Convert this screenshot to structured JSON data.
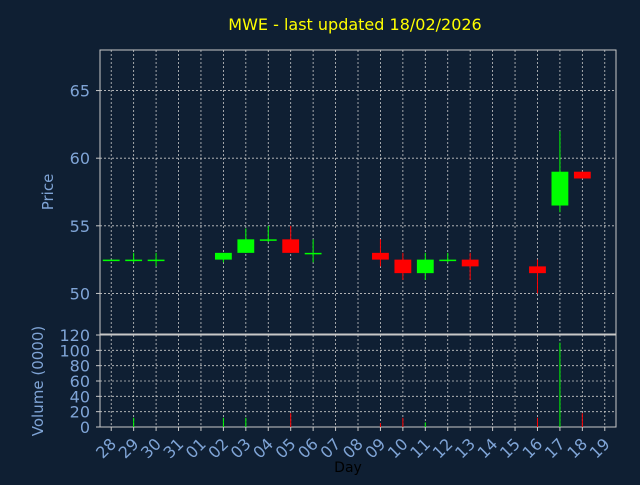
{
  "chart_data": [
    {
      "type": "candlestick",
      "title": "MWE - last updated 18/02/2026",
      "ylabel": "Price",
      "ylim": [
        47,
        68
      ],
      "yticks": [
        50,
        55,
        60,
        65
      ],
      "grid": true,
      "categories": [
        "28",
        "29",
        "30",
        "31",
        "01",
        "02",
        "03",
        "04",
        "05",
        "06",
        "07",
        "08",
        "09",
        "10",
        "11",
        "12",
        "13",
        "14",
        "15",
        "16",
        "17",
        "18",
        "19"
      ],
      "candles": [
        {
          "day": "28",
          "open": 52.5,
          "close": 52.5,
          "high": 52.5,
          "low": 52.5
        },
        {
          "day": "29",
          "open": 52.5,
          "close": 52.5,
          "high": 53.0,
          "low": 52.3
        },
        {
          "day": "30",
          "open": 52.5,
          "close": 52.5,
          "high": 53.0,
          "low": 52.0
        },
        {
          "day": "02",
          "open": 52.5,
          "close": 53.0,
          "high": 53.0,
          "low": 52.3
        },
        {
          "day": "03",
          "open": 53.0,
          "close": 54.0,
          "high": 54.8,
          "low": 53.0
        },
        {
          "day": "04",
          "open": 54.0,
          "close": 54.0,
          "high": 55.0,
          "low": 53.8
        },
        {
          "day": "05",
          "open": 54.0,
          "close": 53.0,
          "high": 55.0,
          "low": 53.0
        },
        {
          "day": "06",
          "open": 53.0,
          "close": 53.0,
          "high": 54.0,
          "low": 52.3
        },
        {
          "day": "09",
          "open": 53.0,
          "close": 52.5,
          "high": 54.0,
          "low": 52.0
        },
        {
          "day": "10",
          "open": 52.5,
          "close": 51.5,
          "high": 53.0,
          "low": 51.0
        },
        {
          "day": "11",
          "open": 51.5,
          "close": 52.5,
          "high": 53.0,
          "low": 51.0
        },
        {
          "day": "12",
          "open": 52.5,
          "close": 52.5,
          "high": 53.0,
          "low": 52.3
        },
        {
          "day": "13",
          "open": 52.5,
          "close": 52.0,
          "high": 53.0,
          "low": 51.0
        },
        {
          "day": "16",
          "open": 52.0,
          "close": 51.5,
          "high": 52.5,
          "low": 50.0
        },
        {
          "day": "17",
          "open": 56.5,
          "close": 59.0,
          "high": 62.0,
          "low": 56.0
        },
        {
          "day": "18",
          "open": 59.0,
          "close": 58.5,
          "high": 59.0,
          "low": 58.5
        }
      ],
      "up_color": "#00ff00",
      "down_color": "#ff0000"
    },
    {
      "type": "bar",
      "ylabel": "Volume (0000)",
      "xlabel": "Day",
      "ylim": [
        0,
        120
      ],
      "yticks": [
        0,
        20,
        40,
        60,
        80,
        100,
        120
      ],
      "grid": true,
      "categories": [
        "28",
        "29",
        "30",
        "31",
        "01",
        "02",
        "03",
        "04",
        "05",
        "06",
        "07",
        "08",
        "09",
        "10",
        "11",
        "12",
        "13",
        "14",
        "15",
        "16",
        "17",
        "18",
        "19"
      ],
      "values": [
        0,
        12,
        0,
        0,
        0,
        12,
        12,
        0,
        18,
        0,
        0,
        0,
        5,
        12,
        6,
        0,
        0,
        0,
        0,
        12,
        110,
        18,
        0
      ],
      "bar_colors": [
        "#00ff00",
        "#00ff00",
        "#00ff00",
        "#00ff00",
        "#00ff00",
        "#00ff00",
        "#00ff00",
        "#00ff00",
        "#ff0000",
        "#00ff00",
        "#00ff00",
        "#00ff00",
        "#ff0000",
        "#ff0000",
        "#00ff00",
        "#00ff00",
        "#ff0000",
        "#00ff00",
        "#00ff00",
        "#ff0000",
        "#00ff00",
        "#ff0000",
        "#00ff00"
      ]
    }
  ],
  "colors": {
    "background": "#0f1f33",
    "title": "#ffff00",
    "axis_text": "#7fa4d6",
    "axis_line": "#c8c8c8",
    "grid": "#c8c8c8"
  }
}
